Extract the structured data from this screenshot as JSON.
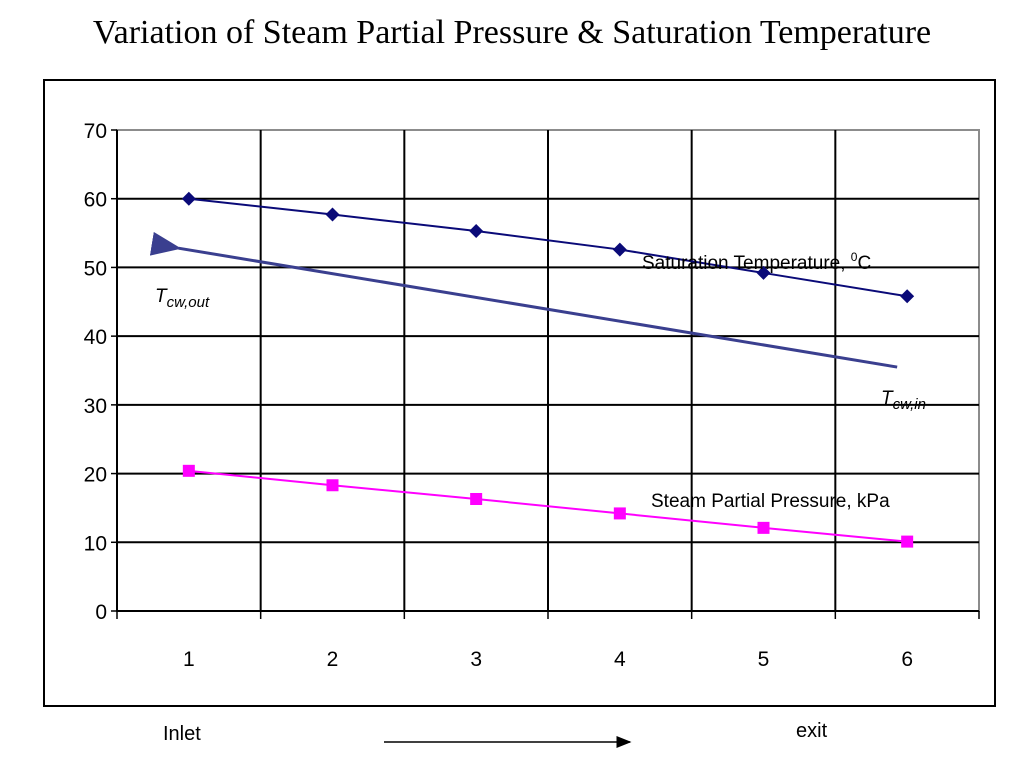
{
  "chart_data": {
    "type": "line",
    "title": "Variation of Steam Partial Pressure & Saturation Temperature",
    "x": [
      1,
      2,
      3,
      4,
      5,
      6
    ],
    "ylim": [
      0,
      70
    ],
    "yticks": [
      0,
      10,
      20,
      30,
      40,
      50,
      60,
      70
    ],
    "grid": true,
    "series": [
      {
        "name": "Saturation Temperature",
        "values": [
          60,
          57.7,
          55.3,
          52.6,
          49.2,
          45.8
        ],
        "color": "#0a0a78",
        "marker": "diamond"
      },
      {
        "name": "Steam Partial Pressure, kPa",
        "values": [
          20.4,
          18.3,
          16.3,
          14.2,
          12.1,
          10.1
        ],
        "color": "#ff00ff",
        "marker": "square"
      }
    ],
    "arrow": {
      "color": "#3a3f8f",
      "from": {
        "x": 6,
        "y": 35.5
      },
      "to": {
        "x": 0.9,
        "y": 52.8
      }
    },
    "annotations": {
      "sat_label_main": "Saturation Temperature, ",
      "sat_label_sup": "0",
      "sat_label_unit": "C",
      "pressure_label": "Steam Partial Pressure, kPa",
      "tcw_out_T": "T",
      "tcw_out_sub": "cw,out",
      "tcw_in_T": "T",
      "tcw_in_sub": "cw,in"
    }
  },
  "footer": {
    "inlet": "Inlet",
    "exit": "exit"
  }
}
